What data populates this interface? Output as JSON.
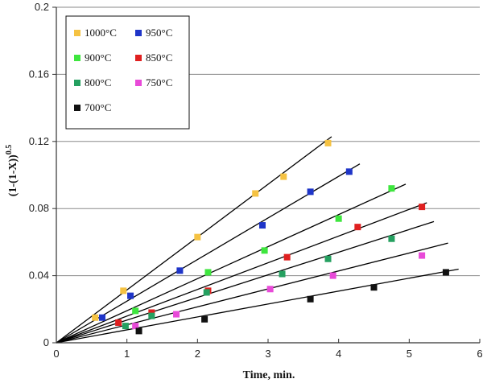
{
  "chart_data": {
    "type": "scatter",
    "title": "",
    "xlabel": "Time, min.",
    "ylabel": "(1-(1-X))0.5",
    "ylabel_parts": {
      "base": "(1-(1-X))",
      "exponent": "0.5"
    },
    "xlim": [
      0,
      6
    ],
    "ylim": [
      0,
      0.2
    ],
    "x_ticks": [
      "0",
      "1",
      "2",
      "3",
      "4",
      "5",
      "6"
    ],
    "y_ticks": [
      "0",
      "0.04",
      "0.08",
      "0.12",
      "0.16",
      "0.2"
    ],
    "x_tick_values": [
      0,
      1,
      2,
      3,
      4,
      5,
      6
    ],
    "y_tick_values": [
      0,
      0.04,
      0.08,
      0.12,
      0.16,
      0.2
    ],
    "legend_position": "top-left",
    "series": [
      {
        "name": "1000°C",
        "color": "#f5c242",
        "x": [
          0.55,
          0.95,
          2.0,
          2.82,
          3.22,
          3.85
        ],
        "y": [
          0.015,
          0.031,
          0.063,
          0.089,
          0.099,
          0.119
        ],
        "fit": {
          "slope": 0.0315,
          "xmax": 3.9
        }
      },
      {
        "name": "950°C",
        "color": "#1f35c8",
        "x": [
          0.65,
          1.05,
          1.75,
          2.92,
          3.6,
          4.15
        ],
        "y": [
          0.015,
          0.028,
          0.043,
          0.07,
          0.09,
          0.102
        ],
        "fit": {
          "slope": 0.0248,
          "xmax": 4.3
        }
      },
      {
        "name": "900°C",
        "color": "#3ee63e",
        "x": [
          1.12,
          2.15,
          2.95,
          4.0,
          4.75
        ],
        "y": [
          0.019,
          0.042,
          0.055,
          0.074,
          0.092
        ],
        "fit": {
          "slope": 0.0191,
          "xmax": 4.95
        }
      },
      {
        "name": "850°C",
        "color": "#e02020",
        "x": [
          0.88,
          1.35,
          2.15,
          3.27,
          4.27,
          5.18
        ],
        "y": [
          0.012,
          0.018,
          0.031,
          0.051,
          0.069,
          0.081
        ],
        "fit": {
          "slope": 0.0159,
          "xmax": 5.25
        }
      },
      {
        "name": "800°C",
        "color": "#25a060",
        "x": [
          0.98,
          1.35,
          2.13,
          3.2,
          3.85,
          4.75
        ],
        "y": [
          0.01,
          0.016,
          0.03,
          0.041,
          0.05,
          0.062
        ],
        "fit": {
          "slope": 0.0135,
          "xmax": 5.35
        }
      },
      {
        "name": "750°C",
        "color": "#e84ad8",
        "x": [
          1.12,
          1.7,
          3.03,
          3.92,
          5.18
        ],
        "y": [
          0.01,
          0.017,
          0.032,
          0.04,
          0.052
        ],
        "fit": {
          "slope": 0.0107,
          "xmax": 5.55
        }
      },
      {
        "name": "700°C",
        "color": "#111111",
        "x": [
          1.17,
          2.1,
          3.6,
          4.5,
          5.52
        ],
        "y": [
          0.007,
          0.014,
          0.026,
          0.033,
          0.042
        ],
        "fit": {
          "slope": 0.0077,
          "xmax": 5.7
        }
      }
    ]
  }
}
